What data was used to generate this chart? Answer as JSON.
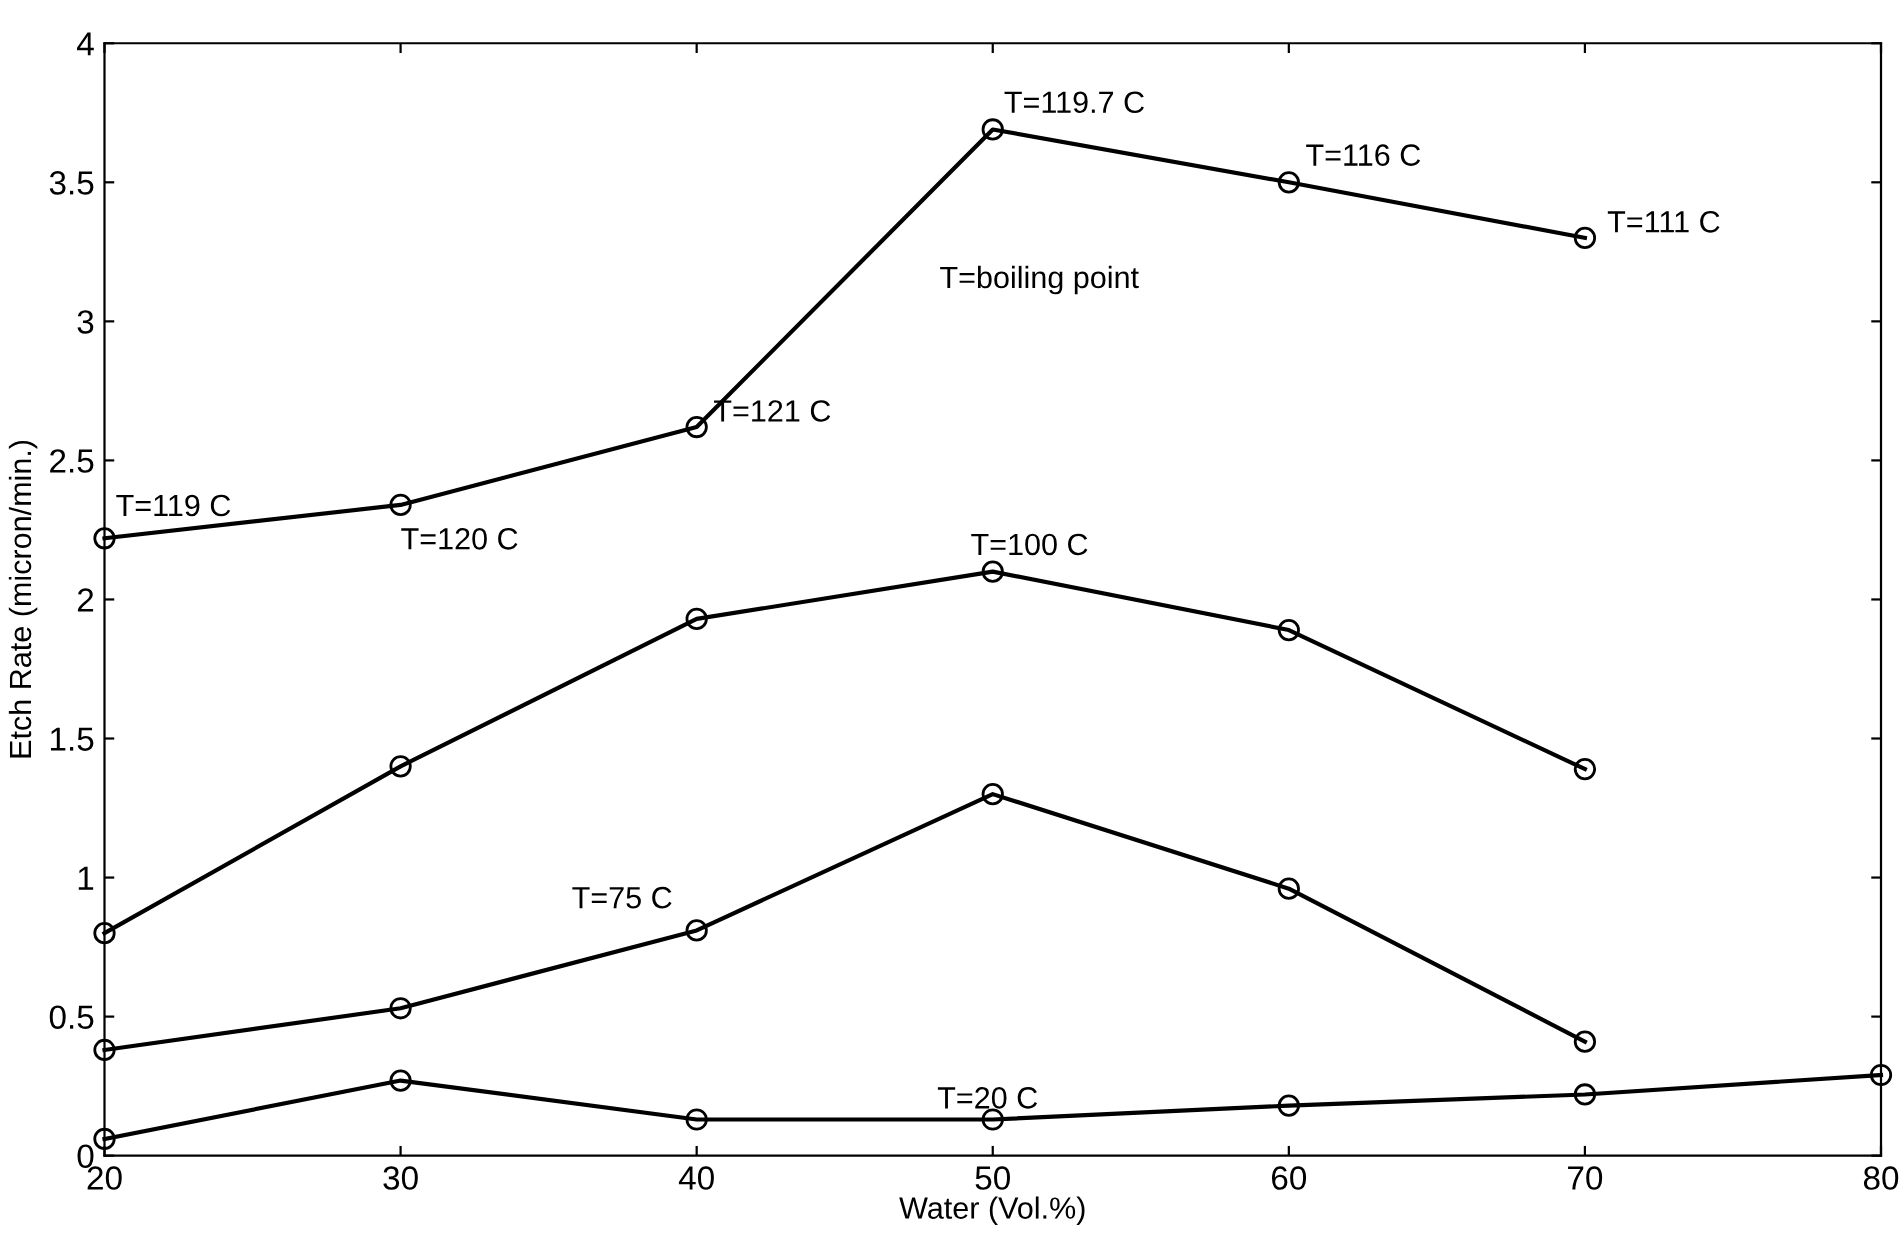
{
  "chart_data": {
    "type": "line",
    "xlabel": "Water (Vol.%)",
    "ylabel": "Etch Rate (micron/min.)",
    "x": [
      20,
      30,
      40,
      50,
      60,
      70,
      80
    ],
    "series": [
      {
        "color": "#000000",
        "values": [
          2.22,
          2.34,
          2.62,
          3.69,
          3.5,
          3.3,
          null
        ]
      },
      {
        "color": "#000000",
        "values": [
          0.8,
          1.4,
          1.93,
          2.1,
          1.89,
          1.39,
          null
        ]
      },
      {
        "color": "#000000",
        "values": [
          0.38,
          0.53,
          0.81,
          1.3,
          0.96,
          0.41,
          null
        ]
      },
      {
        "color": "#000000",
        "values": [
          0.06,
          0.27,
          0.13,
          0.13,
          0.18,
          0.22,
          0.29
        ]
      }
    ],
    "annotations": [
      {
        "text": "T=119 C",
        "x": 20,
        "y": 2.22
      },
      {
        "text": "T=120 C",
        "x": 30,
        "y": 2.34
      },
      {
        "text": "T=121 C",
        "x": 40,
        "y": 2.62
      },
      {
        "text": "T=119.7 C",
        "x": 50,
        "y": 3.69
      },
      {
        "text": "T=116 C",
        "x": 60,
        "y": 3.5
      },
      {
        "text": "T=111 C",
        "x": 70,
        "y": 3.3
      },
      "T=boiling point",
      {
        "text": "T=100 C",
        "x": 50,
        "y": 2.1
      },
      {
        "text": "T=75 C",
        "x": 40,
        "y": 0.81
      },
      {
        "text": "T=20 C",
        "x": 50,
        "y": 0.13
      }
    ],
    "xlim": [
      20,
      80
    ],
    "ylim": [
      0,
      4
    ],
    "xticks": [
      20,
      30,
      40,
      50,
      60,
      70,
      80
    ],
    "yticks": [
      0,
      0.5,
      1,
      1.5,
      2,
      2.5,
      3,
      3.5,
      4
    ],
    "grid": false,
    "legend": false,
    "marker": "circle",
    "line_style": "solid"
  }
}
